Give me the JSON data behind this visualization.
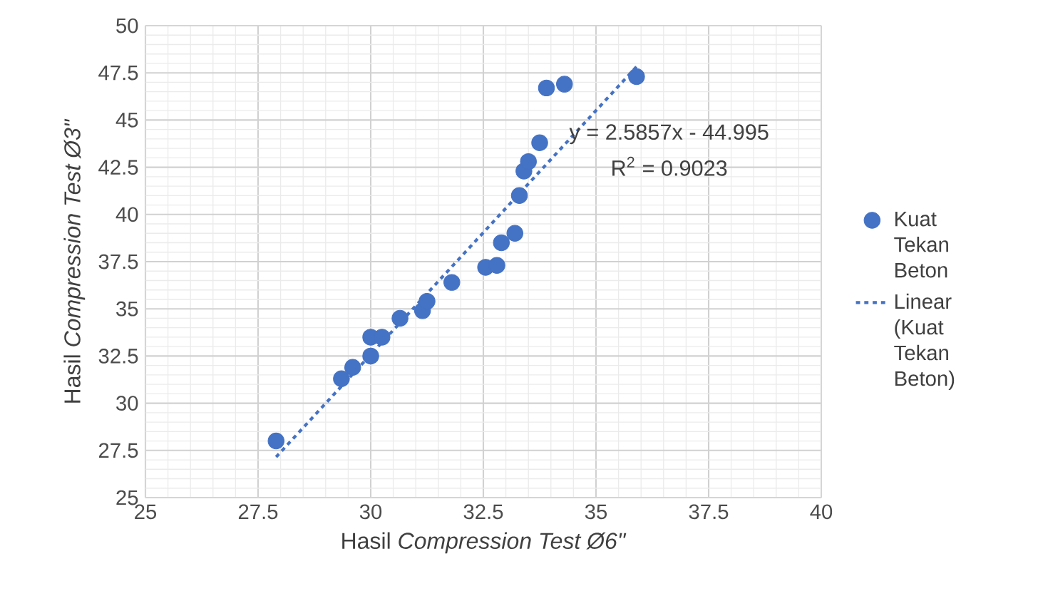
{
  "chart_data": {
    "type": "scatter",
    "xlabel": "Hasil *Compression Test Ø6\"*",
    "ylabel": "Hasil *Compression Test Ø3\"*",
    "series": [
      {
        "name": "Kuat Tekan Beton",
        "type": "scatter",
        "color": "#4472c4",
        "marker": "circle",
        "x": [
          27.9,
          29.35,
          29.6,
          30.0,
          30.0,
          30.25,
          30.65,
          31.15,
          31.25,
          31.8,
          32.55,
          32.8,
          32.9,
          33.2,
          33.3,
          33.4,
          33.5,
          33.75,
          33.9,
          34.3,
          35.9
        ],
        "values": [
          28.0,
          31.3,
          31.9,
          32.5,
          33.5,
          33.5,
          34.5,
          34.9,
          35.4,
          36.4,
          37.2,
          37.3,
          38.5,
          39.0,
          41.0,
          42.3,
          42.8,
          43.8,
          46.7,
          46.9,
          47.3
        ]
      },
      {
        "name": "Linear (Kuat Tekan Beton)",
        "type": "line",
        "color": "#4472c4",
        "line_style": "dotted",
        "marker": "none",
        "x": [
          27.9,
          35.9
        ],
        "values": [
          27.15,
          47.83
        ]
      }
    ],
    "annotations": [
      "y = 2.5857x - 44.995",
      "R$^{2}$ = 0.9023"
    ],
    "xlim": [
      25,
      40
    ],
    "xticks": [
      25,
      27.5,
      30,
      32.5,
      35,
      37.5,
      40
    ],
    "ylim": [
      25,
      50
    ],
    "yticks": [
      25,
      27.5,
      30,
      32.5,
      35,
      37.5,
      40,
      42.5,
      45,
      47.5,
      50
    ],
    "grid": true,
    "legend": "right"
  }
}
